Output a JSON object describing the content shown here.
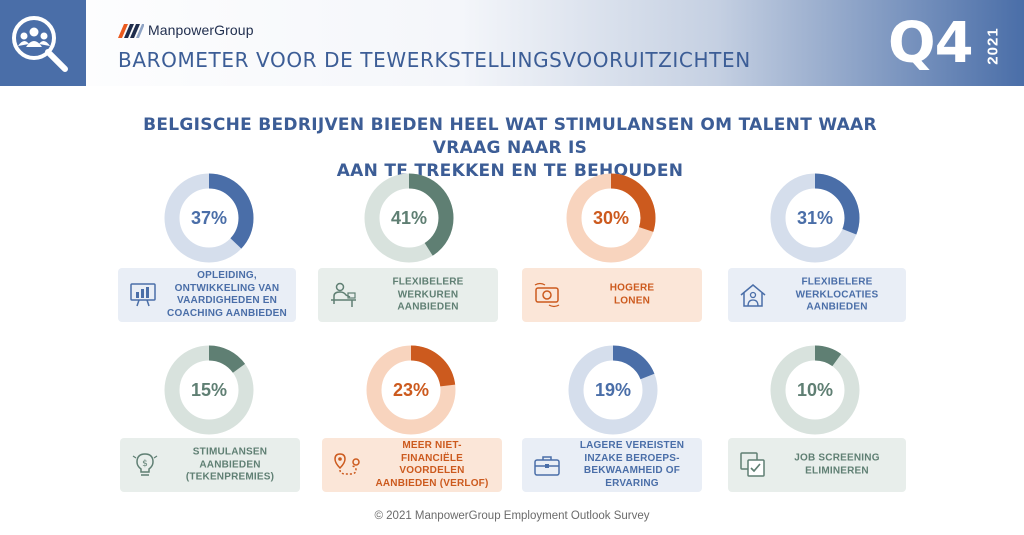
{
  "header": {
    "logo_text": "ManpowerGroup",
    "title": "BAROMETER VOOR DE TEWERKSTELLINGSVOORUITZICHTEN",
    "quarter": "Q4",
    "year": "2021"
  },
  "main_title_line1": "BELGISCHE BEDRIJVEN BIEDEN HEEL WAT STIMULANSEN OM TALENT WAAR VRAAG NAAR IS",
  "main_title_line2": "AAN TE TREKKEN EN TE BEHOUDEN",
  "colors": {
    "blue": "#4a6ea8",
    "blue_light": "#d5deec",
    "blue_card": "#e9eef6",
    "green": "#5f7f73",
    "green_light": "#d8e2dd",
    "green_card": "#e8eeeb",
    "orange": "#cc5a1e",
    "orange_light": "#f8d4be",
    "orange_card": "#fbe6d8"
  },
  "chart_data": {
    "type": "donut",
    "categories": [
      "OPLEIDING, ONTWIKKELING VAN VAARDIGHEDEN EN COACHING AANBIEDEN",
      "FLEXIBELERE WERKUREN AANBIEDEN",
      "HOGERE LONEN",
      "FLEXIBELERE WERKLOCATIES AANBIEDEN",
      "STIMULANSEN AANBIEDEN (TEKENPREMIES)",
      "MEER NIET-FINANCIËLE VOORDELEN AANBIEDEN (VERLOF)",
      "LAGERE VEREISTEN INZAKE BEROEPS-BEKWAAMHEID OF ERVARING",
      "JOB SCREENING ELIMINEREN"
    ],
    "values": [
      37,
      41,
      30,
      31,
      15,
      23,
      19,
      10
    ],
    "labels": [
      "37%",
      "41%",
      "30%",
      "31%",
      "15%",
      "23%",
      "19%",
      "10%"
    ],
    "unit": "%"
  },
  "cards": [
    {
      "lines": [
        "OPLEIDING,",
        "ONTWIKKELING VAN",
        "VAARDIGHEDEN EN",
        "COACHING AANBIEDEN"
      ],
      "theme": "blue",
      "icon": "training-chart-icon"
    },
    {
      "lines": [
        "FLEXIBELERE",
        "WERKUREN",
        "AANBIEDEN"
      ],
      "theme": "green",
      "icon": "person-at-desk-icon"
    },
    {
      "lines": [
        "HOGERE",
        "LONEN"
      ],
      "theme": "orange",
      "icon": "money-bill-icon"
    },
    {
      "lines": [
        "FLEXIBELERE",
        "WERKLOCATIES",
        "AANBIEDEN"
      ],
      "theme": "blue",
      "icon": "home-work-icon"
    },
    {
      "lines": [
        "STIMULANSEN",
        "AANBIEDEN",
        "(TEKENPREMIES)"
      ],
      "theme": "green",
      "icon": "lightbulb-dollar-icon"
    },
    {
      "lines": [
        "MEER NIET-",
        "FINANCIËLE",
        "VOORDELEN",
        "AANBIEDEN (VERLOF)"
      ],
      "theme": "orange",
      "icon": "location-route-icon"
    },
    {
      "lines": [
        "LAGERE VEREISTEN",
        "INZAKE BEROEPS-",
        "BEKWAAMHEID OF",
        "ERVARING"
      ],
      "theme": "blue",
      "icon": "briefcase-icon"
    },
    {
      "lines": [
        "JOB SCREENING",
        "ELIMINEREN"
      ],
      "theme": "green",
      "icon": "checklist-icon"
    }
  ],
  "footer": "© 2021 ManpowerGroup Employment Outlook Survey"
}
